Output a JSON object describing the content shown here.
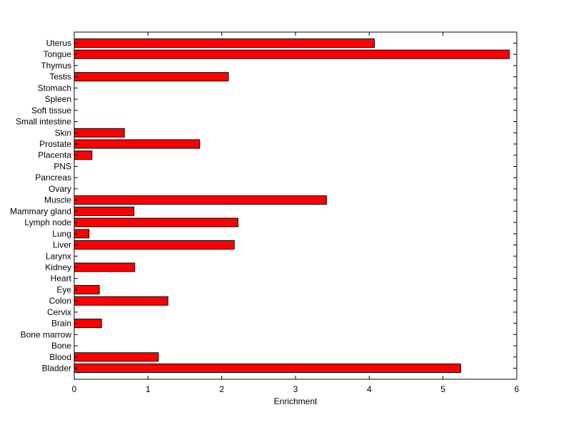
{
  "chart_data": {
    "type": "bar",
    "orientation": "horizontal",
    "title": "",
    "xlabel": "Enrichment",
    "ylabel": "",
    "xlim": [
      0,
      6
    ],
    "xticks": [
      "0",
      "1",
      "2",
      "3",
      "4",
      "5",
      "6"
    ],
    "grid": false,
    "legend": "none",
    "bar_color": "#ff0000",
    "edge_color": "#000000",
    "categories": [
      "Uterus",
      "Tongue",
      "Thymus",
      "Testis",
      "Stomach",
      "Spleen",
      "Soft tissue",
      "Small intestine",
      "Skin",
      "Prostate",
      "Placenta",
      "PNS",
      "Pancreas",
      "Ovary",
      "Muscle",
      "Mammary gland",
      "Lymph node",
      "Lung",
      "Liver",
      "Larynx",
      "Kidney",
      "Heart",
      "Eye",
      "Colon",
      "Cervix",
      "Brain",
      "Bone marrow",
      "Bone",
      "Blood",
      "Bladder"
    ],
    "values": [
      4.07,
      5.9,
      0,
      2.09,
      0,
      0,
      0,
      0,
      0.68,
      1.7,
      0.24,
      0,
      0,
      0,
      3.42,
      0.81,
      2.22,
      0.2,
      2.17,
      0,
      0.82,
      0,
      0.34,
      1.27,
      0,
      0.37,
      0,
      0,
      1.14,
      5.24
    ]
  }
}
